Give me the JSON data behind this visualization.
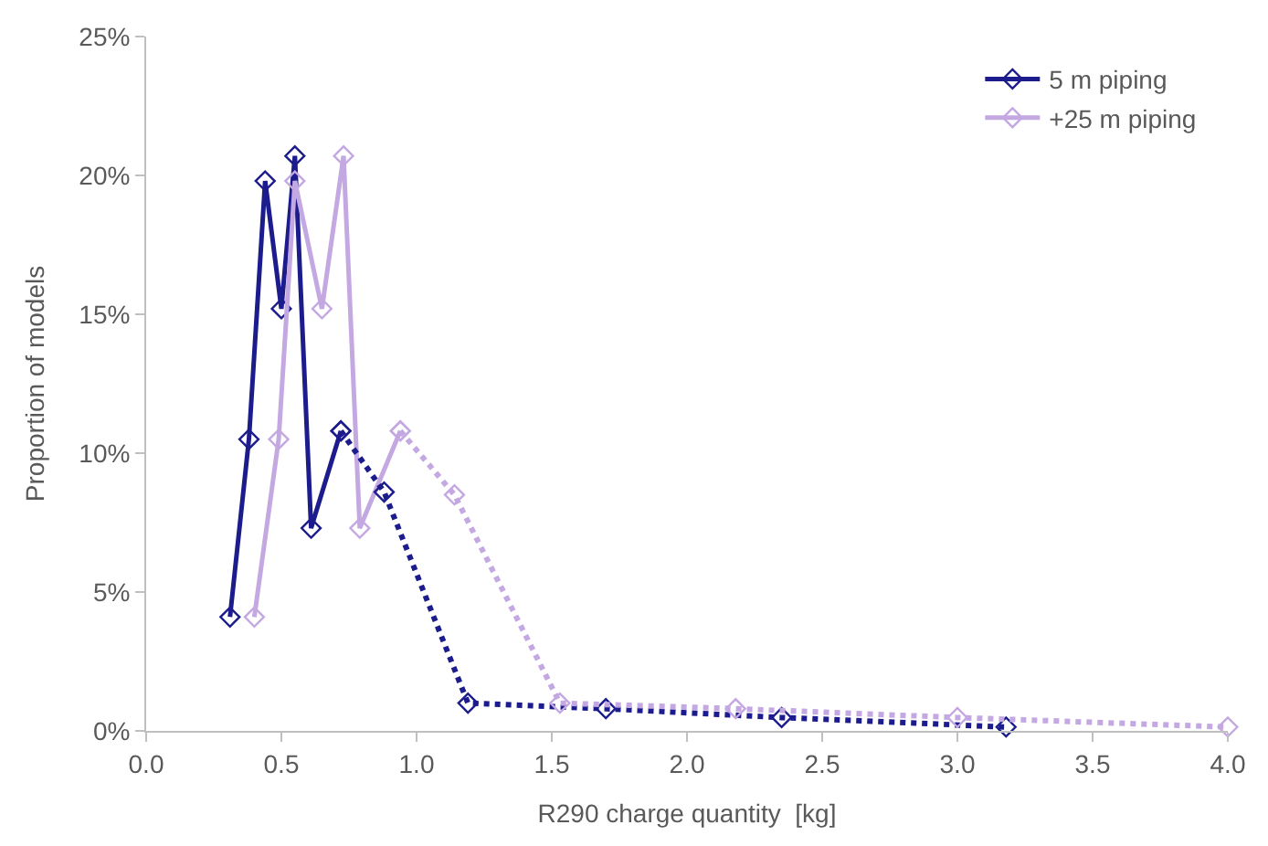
{
  "chart_data": {
    "type": "line",
    "xlabel": "R290 charge quantity  [kg]",
    "ylabel": "Proportion of models",
    "series": [
      {
        "name": "5 m piping",
        "color": "#1c1c8c",
        "line_style": "solid",
        "x": [
          0.31,
          0.38,
          0.44,
          0.5,
          0.55,
          0.61,
          0.72
        ],
        "values": [
          4.1,
          10.5,
          19.8,
          15.2,
          20.7,
          7.3,
          10.8
        ]
      },
      {
        "name": "+25 m piping",
        "color": "#c4a8e2",
        "line_style": "solid",
        "x": [
          0.4,
          0.49,
          0.55,
          0.65,
          0.73,
          0.79,
          0.94
        ],
        "values": [
          4.1,
          10.5,
          19.8,
          15.2,
          20.7,
          7.3,
          10.8
        ]
      },
      {
        "color": "#1c1c8c",
        "line_style": "dotted",
        "x": [
          0.72,
          0.88,
          1.19,
          1.7,
          2.35,
          3.18
        ],
        "values": [
          10.8,
          8.6,
          1.0,
          0.8,
          0.48,
          0.14
        ]
      },
      {
        "color": "#c4a8e2",
        "line_style": "dotted",
        "x": [
          0.94,
          1.14,
          1.53,
          2.18,
          3.0,
          4.0
        ],
        "values": [
          10.8,
          8.5,
          1.0,
          0.8,
          0.48,
          0.14
        ]
      }
    ],
    "marker": "diamond",
    "grid": false,
    "legend": "top right",
    "xlim": [
      0,
      4
    ],
    "xticks": [
      {
        "value": 0,
        "label": "0.0"
      },
      0.5,
      {
        "value": 1,
        "label": "1.0"
      },
      1.5,
      {
        "value": 2,
        "label": "2.0"
      },
      2.5,
      {
        "value": 3,
        "label": "3.0"
      },
      3.5,
      {
        "value": 4,
        "label": "4.0"
      }
    ],
    "ylim": [
      0,
      25
    ],
    "yticks": [
      {
        "value": 0,
        "label": "0%"
      },
      {
        "value": 5,
        "label": "5%"
      },
      {
        "value": 10,
        "label": "10%"
      },
      {
        "value": 15,
        "label": "15%"
      },
      {
        "value": 20,
        "label": "20%"
      },
      {
        "value": 25,
        "label": "25%"
      }
    ]
  }
}
